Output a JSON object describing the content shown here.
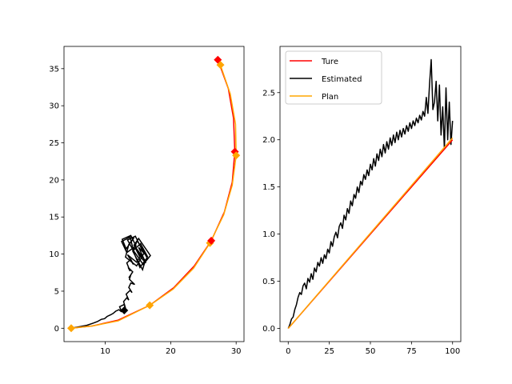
{
  "chart_data": [
    {
      "type": "line",
      "title": "",
      "xlabel": "",
      "ylabel": "",
      "xlim": [
        3.7,
        31.2
      ],
      "ylim": [
        -1.8,
        38.0
      ],
      "xticks": [
        10,
        20,
        30
      ],
      "yticks": [
        0,
        5,
        10,
        15,
        20,
        25,
        30,
        35
      ],
      "grid": false,
      "series": [
        {
          "color": "#000000",
          "kind": "trajectory",
          "x": [
            4.8,
            6.0,
            7.2,
            8.2,
            8.8,
            9.4,
            9.9,
            10.3,
            10.8,
            11.2,
            11.6,
            12.1,
            12.5,
            12.2,
            12.9,
            13.1,
            12.8,
            13.3,
            13.6,
            13.2,
            13.8,
            14.1,
            13.6,
            13.9,
            14.5,
            13.7,
            13.9,
            13.6,
            14.2,
            13.5,
            13.8,
            13.3,
            13.9,
            14.3,
            13.4,
            14.8,
            15.3,
            14.6,
            15.6,
            16.2,
            15.1,
            16.5,
            15.4,
            14.3,
            15.8,
            16.9,
            15.1,
            14.4,
            16.1,
            15.7,
            14.2,
            14.9,
            16.4,
            15.3,
            14.1,
            13.4,
            14.6,
            15.9,
            14.8,
            13.1,
            13.6,
            14.4,
            13.2,
            12.6,
            13.9,
            14.7,
            13.3,
            12.5,
            13.8,
            14.2
          ],
          "y": [
            0.0,
            0.2,
            0.4,
            0.7,
            0.9,
            1.2,
            1.3,
            1.6,
            1.8,
            2.0,
            2.3,
            2.5,
            2.2,
            2.9,
            3.2,
            2.7,
            3.6,
            4.1,
            3.8,
            4.6,
            5.1,
            4.8,
            5.5,
            6.1,
            5.9,
            6.6,
            7.2,
            6.8,
            7.6,
            8.2,
            7.7,
            8.8,
            9.3,
            8.6,
            9.9,
            8.9,
            9.6,
            10.8,
            9.4,
            8.8,
            10.9,
            9.6,
            11.4,
            10.5,
            8.6,
            9.8,
            12.1,
            11.2,
            9.1,
            7.9,
            10.4,
            11.8,
            9.5,
            8.2,
            10.8,
            11.9,
            12.4,
            10.1,
            8.4,
            9.6,
            11.3,
            12.2,
            10.7,
            12.0,
            12.5,
            11.1,
            10.2,
            11.7,
            12.3,
            10.9
          ]
        },
        {
          "color": "#ff0000",
          "kind": "arc",
          "center": [
            36.5,
            0.5
          ],
          "radius": 31.7,
          "t_range": [
            184,
            240
          ],
          "markers_t": [
            180.9,
            206.9,
            223.4,
            237.5,
            247.0
          ]
        },
        {
          "color": "#ffa500",
          "kind": "arc",
          "center": [
            36.5,
            0.5
          ],
          "radius": 31.7,
          "t_range": [
            184,
            241
          ],
          "markers_t": [
            180.9,
            206.9,
            224.2,
            238.2,
            244.5
          ]
        }
      ],
      "markers": [
        {
          "x": 4.8,
          "y": 0.0,
          "color": "#ffa500"
        },
        {
          "x": 16.8,
          "y": 3.1,
          "color": "#ffa500"
        },
        {
          "x": 26.0,
          "y": 11.5,
          "color": "#ffa500"
        },
        {
          "x": 26.2,
          "y": 11.8,
          "color": "#ff0000"
        },
        {
          "x": 29.8,
          "y": 23.8,
          "color": "#ff0000"
        },
        {
          "x": 30.0,
          "y": 23.3,
          "color": "#ffa500"
        },
        {
          "x": 27.2,
          "y": 36.2,
          "color": "#ff0000"
        },
        {
          "x": 27.6,
          "y": 35.5,
          "color": "#ffa500"
        },
        {
          "x": 12.9,
          "y": 2.4,
          "color": "#000000"
        }
      ],
      "polyline_paths": [
        {
          "color": "#ff0000",
          "points": [
            [
              4.8,
              0.0
            ],
            [
              8.0,
              0.3
            ],
            [
              12.0,
              1.1
            ],
            [
              16.8,
              3.1
            ],
            [
              20.5,
              5.5
            ],
            [
              23.6,
              8.4
            ],
            [
              26.2,
              11.8
            ],
            [
              28.2,
              15.7
            ],
            [
              29.4,
              19.7
            ],
            [
              29.8,
              23.8
            ],
            [
              29.6,
              28.3
            ],
            [
              28.8,
              32.3
            ],
            [
              27.2,
              36.2
            ]
          ]
        },
        {
          "color": "#ffa500",
          "points": [
            [
              4.8,
              0.0
            ],
            [
              8.0,
              0.3
            ],
            [
              12.0,
              1.0
            ],
            [
              16.8,
              3.1
            ],
            [
              20.4,
              5.3
            ],
            [
              23.5,
              8.1
            ],
            [
              26.0,
              11.5
            ],
            [
              28.1,
              15.3
            ],
            [
              29.4,
              19.3
            ],
            [
              30.0,
              23.3
            ],
            [
              29.9,
              27.5
            ],
            [
              29.1,
              31.6
            ],
            [
              27.6,
              35.5
            ]
          ]
        }
      ]
    },
    {
      "type": "line",
      "title": "",
      "xlabel": "",
      "ylabel": "",
      "xlim": [
        -5,
        105
      ],
      "ylim": [
        -0.14,
        2.99
      ],
      "xticks": [
        0,
        25,
        50,
        75,
        100
      ],
      "yticks": [
        0.0,
        0.5,
        1.0,
        1.5,
        2.0,
        2.5
      ],
      "ytick_labels": [
        "0.0",
        "0.5",
        "1.0",
        "1.5",
        "2.0",
        "2.5"
      ],
      "grid": false,
      "legend_position": "top-left",
      "series": [
        {
          "name": "Ture",
          "color": "#ff0000",
          "x": [
            0,
            100
          ],
          "y": [
            0.0,
            2.0
          ]
        },
        {
          "name": "Estimated",
          "color": "#000000",
          "x": [
            0,
            1,
            2,
            3,
            4,
            5,
            6,
            7,
            8,
            9,
            10,
            11,
            12,
            13,
            14,
            15,
            16,
            17,
            18,
            19,
            20,
            21,
            22,
            23,
            24,
            25,
            26,
            27,
            28,
            29,
            30,
            31,
            32,
            33,
            34,
            35,
            36,
            37,
            38,
            39,
            40,
            41,
            42,
            43,
            44,
            45,
            46,
            47,
            48,
            49,
            50,
            51,
            52,
            53,
            54,
            55,
            56,
            57,
            58,
            59,
            60,
            61,
            62,
            63,
            64,
            65,
            66,
            67,
            68,
            69,
            70,
            71,
            72,
            73,
            74,
            75,
            76,
            77,
            78,
            79,
            80,
            81,
            82,
            83,
            84,
            85,
            86,
            87,
            88,
            89,
            90,
            91,
            92,
            93,
            94,
            95,
            96,
            97,
            98,
            99,
            100
          ],
          "y": [
            0.0,
            0.04,
            0.1,
            0.12,
            0.2,
            0.25,
            0.33,
            0.38,
            0.36,
            0.45,
            0.48,
            0.42,
            0.53,
            0.49,
            0.58,
            0.52,
            0.64,
            0.6,
            0.7,
            0.66,
            0.75,
            0.69,
            0.78,
            0.74,
            0.84,
            0.8,
            0.92,
            0.87,
            0.97,
            1.02,
            0.96,
            1.08,
            1.12,
            1.06,
            1.2,
            1.15,
            1.27,
            1.22,
            1.35,
            1.3,
            1.42,
            1.38,
            1.5,
            1.44,
            1.56,
            1.52,
            1.63,
            1.58,
            1.68,
            1.62,
            1.74,
            1.68,
            1.8,
            1.72,
            1.85,
            1.78,
            1.9,
            1.82,
            1.95,
            1.86,
            1.98,
            1.9,
            2.02,
            1.94,
            2.05,
            1.97,
            2.08,
            2.0,
            2.1,
            2.03,
            2.12,
            2.06,
            2.15,
            2.09,
            2.18,
            2.12,
            2.2,
            2.15,
            2.23,
            2.18,
            2.26,
            2.21,
            2.3,
            2.25,
            2.45,
            2.28,
            2.6,
            2.85,
            2.32,
            2.4,
            2.62,
            2.2,
            2.58,
            2.05,
            2.35,
            1.9,
            2.55,
            2.0,
            2.4,
            1.95,
            2.2
          ]
        },
        {
          "name": "Plan",
          "color": "#ffa500",
          "x": [
            0,
            100
          ],
          "y": [
            0.0,
            2.02
          ]
        }
      ]
    }
  ]
}
